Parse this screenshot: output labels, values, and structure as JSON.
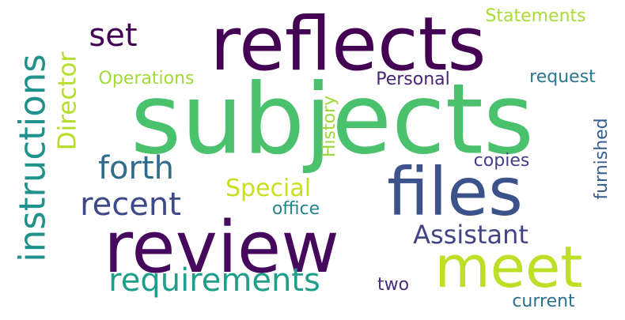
{
  "words": [
    {
      "id": "subjects",
      "text": "subjects",
      "color": "#4ac16d",
      "orientation": "horizontal"
    },
    {
      "id": "reflects",
      "text": "reflects",
      "color": "#440154",
      "orientation": "horizontal"
    },
    {
      "id": "review",
      "text": "review",
      "color": "#46085c",
      "orientation": "horizontal"
    },
    {
      "id": "files",
      "text": "files",
      "color": "#3b528b",
      "orientation": "horizontal"
    },
    {
      "id": "meet",
      "text": "meet",
      "color": "#bddf26",
      "orientation": "horizontal"
    },
    {
      "id": "instructions",
      "text": "instructions",
      "color": "#21918c",
      "orientation": "vertical"
    },
    {
      "id": "requirements",
      "text": "requirements",
      "color": "#1f9e89",
      "orientation": "horizontal"
    },
    {
      "id": "set",
      "text": "set",
      "color": "#440154",
      "orientation": "horizontal"
    },
    {
      "id": "forth",
      "text": "forth",
      "color": "#2f6c8e",
      "orientation": "horizontal"
    },
    {
      "id": "recent",
      "text": "recent",
      "color": "#3e4989",
      "orientation": "horizontal"
    },
    {
      "id": "director",
      "text": "Director",
      "color": "#b5de2b",
      "orientation": "vertical"
    },
    {
      "id": "assistant",
      "text": "Assistant",
      "color": "#414487",
      "orientation": "horizontal"
    },
    {
      "id": "special",
      "text": "Special",
      "color": "#c8e020",
      "orientation": "horizontal"
    },
    {
      "id": "personal",
      "text": "Personal",
      "color": "#482475",
      "orientation": "horizontal"
    },
    {
      "id": "operations",
      "text": "Operations",
      "color": "#a2da37",
      "orientation": "horizontal"
    },
    {
      "id": "history",
      "text": "History",
      "color": "#9dd93b",
      "orientation": "vertical"
    },
    {
      "id": "statements",
      "text": "Statements",
      "color": "#a8db34",
      "orientation": "horizontal"
    },
    {
      "id": "request",
      "text": "request",
      "color": "#2a788e",
      "orientation": "horizontal"
    },
    {
      "id": "furnished",
      "text": "furnished",
      "color": "#355f8d",
      "orientation": "vertical"
    },
    {
      "id": "copies",
      "text": "copies",
      "color": "#433e85",
      "orientation": "horizontal"
    },
    {
      "id": "office",
      "text": "office",
      "color": "#25858e",
      "orientation": "horizontal"
    },
    {
      "id": "two",
      "text": "two",
      "color": "#472d7b",
      "orientation": "horizontal"
    },
    {
      "id": "current",
      "text": "current",
      "color": "#2c718e",
      "orientation": "horizontal"
    }
  ]
}
